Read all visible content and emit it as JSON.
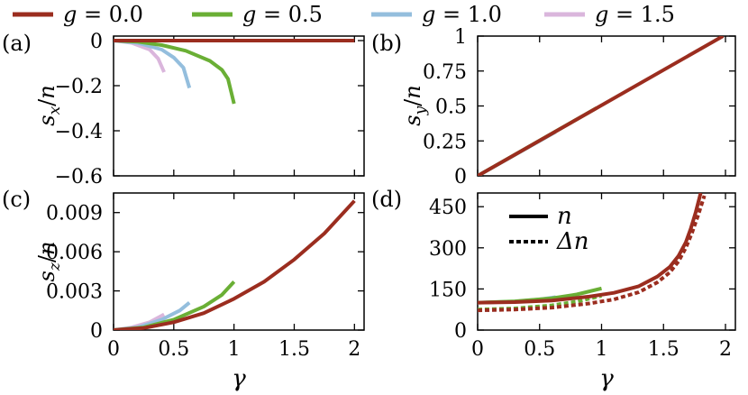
{
  "legend": [
    {
      "text": "g = 0.0",
      "color": "#9b2d1f"
    },
    {
      "text": "g = 0.5",
      "color": "#6aaf35"
    },
    {
      "text": "g = 1.0",
      "color": "#94bedd"
    },
    {
      "text": "g = 1.5",
      "color": "#dab6dc"
    }
  ],
  "chart_data": [
    {
      "panel": "(a)",
      "type": "line",
      "xlabel": "",
      "ylabel": "s_x/n",
      "xlim": [
        0,
        2.08
      ],
      "ylim": [
        -0.6,
        0.02
      ],
      "yticks": [
        0,
        -0.2,
        -0.4,
        -0.6
      ],
      "ytick_labels": [
        "0",
        "−0.2",
        "−0.4",
        "−0.6"
      ],
      "xticks": [
        0,
        0.5,
        1,
        1.5,
        2
      ],
      "xtick_labels": [],
      "series": [
        {
          "name": "g = 0.0",
          "color": "#9b2d1f",
          "x": [
            0,
            0.5,
            1,
            1.5,
            2
          ],
          "y": [
            0,
            0,
            0,
            0,
            0
          ]
        },
        {
          "name": "g = 0.5",
          "color": "#6aaf35",
          "x": [
            0,
            0.2,
            0.4,
            0.6,
            0.8,
            0.9,
            0.95,
            1.0
          ],
          "y": [
            0,
            -0.005,
            -0.02,
            -0.045,
            -0.09,
            -0.13,
            -0.17,
            -0.28
          ]
        },
        {
          "name": "g = 1.0",
          "color": "#94bedd",
          "x": [
            0,
            0.2,
            0.4,
            0.5,
            0.58,
            0.63
          ],
          "y": [
            0,
            -0.01,
            -0.04,
            -0.075,
            -0.12,
            -0.21
          ]
        },
        {
          "name": "g = 1.5",
          "color": "#dab6dc",
          "x": [
            0,
            0.15,
            0.3,
            0.37,
            0.42
          ],
          "y": [
            0,
            -0.01,
            -0.04,
            -0.08,
            -0.14
          ]
        }
      ]
    },
    {
      "panel": "(b)",
      "type": "line",
      "xlabel": "",
      "ylabel": "s_y/n",
      "xlim": [
        0,
        2.08
      ],
      "ylim": [
        0,
        1
      ],
      "yticks": [
        0,
        0.25,
        0.5,
        0.75,
        1
      ],
      "ytick_labels": [
        "0",
        "0.25",
        "0.5",
        "0.75",
        "1"
      ],
      "xticks": [
        0,
        0.5,
        1,
        1.5,
        2
      ],
      "xtick_labels": [],
      "series": [
        {
          "name": "g = 0.0",
          "color": "#9b2d1f",
          "x": [
            0,
            1.98
          ],
          "y": [
            0,
            1.0
          ]
        },
        {
          "name": "g = 0.5",
          "color": "#6aaf35",
          "x": [
            0,
            0.96
          ],
          "y": [
            0,
            0.485
          ]
        },
        {
          "name": "g = 1.0",
          "color": "#94bedd",
          "x": [
            0,
            0.63
          ],
          "y": [
            0,
            0.315
          ]
        },
        {
          "name": "g = 1.5",
          "color": "#dab6dc",
          "x": [
            0,
            0.42
          ],
          "y": [
            0,
            0.21
          ]
        }
      ]
    },
    {
      "panel": "(c)",
      "type": "line",
      "xlabel": "γ",
      "ylabel": "s_z/n",
      "xlim": [
        0,
        2.08
      ],
      "ylim": [
        0,
        0.0105
      ],
      "yticks": [
        0,
        0.003,
        0.006,
        0.009
      ],
      "ytick_labels": [
        "0",
        "0.003",
        "0.006",
        "0.009"
      ],
      "xticks": [
        0,
        0.5,
        1,
        1.5,
        2
      ],
      "xtick_labels": [
        "0",
        "0.5",
        "1",
        "1.5",
        "2"
      ],
      "series": [
        {
          "name": "g = 0.0",
          "color": "#9b2d1f",
          "x": [
            0,
            0.25,
            0.5,
            0.75,
            1,
            1.25,
            1.5,
            1.75,
            2
          ],
          "y": [
            0,
            0.00015,
            0.0006,
            0.0013,
            0.0024,
            0.0037,
            0.0054,
            0.0074,
            0.0099
          ]
        },
        {
          "name": "g = 0.5",
          "color": "#6aaf35",
          "x": [
            0,
            0.25,
            0.5,
            0.75,
            0.9,
            1.0
          ],
          "y": [
            0,
            0.0002,
            0.0008,
            0.0018,
            0.0027,
            0.0037
          ]
        },
        {
          "name": "g = 1.0",
          "color": "#94bedd",
          "x": [
            0,
            0.2,
            0.4,
            0.55,
            0.63
          ],
          "y": [
            0,
            0.0002,
            0.0008,
            0.0015,
            0.0021
          ]
        },
        {
          "name": "g = 1.5",
          "color": "#dab6dc",
          "x": [
            0,
            0.15,
            0.3,
            0.42
          ],
          "y": [
            0,
            0.0002,
            0.0006,
            0.0012
          ]
        }
      ]
    },
    {
      "panel": "(d)",
      "type": "line",
      "xlabel": "γ",
      "ylabel": "",
      "xlim": [
        0,
        2.08
      ],
      "ylim": [
        0,
        500
      ],
      "yticks": [
        0,
        150,
        300,
        450
      ],
      "ytick_labels": [
        "0",
        "150",
        "300",
        "450"
      ],
      "xticks": [
        0,
        0.5,
        1,
        1.5,
        2
      ],
      "xtick_labels": [
        "0",
        "0.5",
        "1",
        "1.5",
        "2"
      ],
      "style_legend": [
        {
          "text": "n",
          "style": "solid"
        },
        {
          "text": "Δn",
          "style": "dashed"
        }
      ],
      "series": [
        {
          "name": "g = 0.0 n",
          "color": "#9b2d1f",
          "style": "solid",
          "x": [
            0,
            0.3,
            0.6,
            0.9,
            1.1,
            1.3,
            1.45,
            1.55,
            1.62,
            1.68,
            1.72,
            1.76,
            1.8
          ],
          "y": [
            100,
            102,
            108,
            122,
            136,
            160,
            195,
            230,
            270,
            320,
            370,
            430,
            500
          ]
        },
        {
          "name": "g = 0.0 Δn",
          "color": "#9b2d1f",
          "style": "dashed",
          "x": [
            0,
            0.3,
            0.6,
            0.9,
            1.1,
            1.3,
            1.45,
            1.55,
            1.62,
            1.68,
            1.73,
            1.78,
            1.83
          ],
          "y": [
            72,
            75,
            82,
            97,
            112,
            138,
            174,
            210,
            250,
            300,
            355,
            420,
            490
          ]
        },
        {
          "name": "g = 0.5 n",
          "color": "#6aaf35",
          "style": "solid",
          "x": [
            0,
            0.3,
            0.6,
            0.8,
            1.0
          ],
          "y": [
            100,
            105,
            116,
            130,
            152
          ]
        },
        {
          "name": "g = 0.5 Δn",
          "color": "#6aaf35",
          "style": "dashed",
          "x": [
            0,
            0.3,
            0.6,
            0.8,
            1.0
          ],
          "y": [
            75,
            79,
            90,
            104,
            125
          ]
        },
        {
          "name": "g = 1.0 n",
          "color": "#94bedd",
          "style": "solid",
          "x": [
            0,
            0.3,
            0.5,
            0.63
          ],
          "y": [
            100,
            104,
            112,
            120
          ]
        },
        {
          "name": "g = 1.0 Δn",
          "color": "#94bedd",
          "style": "dashed",
          "x": [
            0,
            0.3,
            0.5,
            0.63
          ],
          "y": [
            72,
            76,
            83,
            91
          ]
        },
        {
          "name": "g = 1.5 n",
          "color": "#dab6dc",
          "style": "solid",
          "x": [
            0,
            0.2,
            0.42
          ],
          "y": [
            100,
            102,
            107
          ]
        },
        {
          "name": "g = 1.5 Δn",
          "color": "#dab6dc",
          "style": "dashed",
          "x": [
            0,
            0.2,
            0.42
          ],
          "y": [
            72,
            74,
            78
          ]
        }
      ]
    }
  ]
}
